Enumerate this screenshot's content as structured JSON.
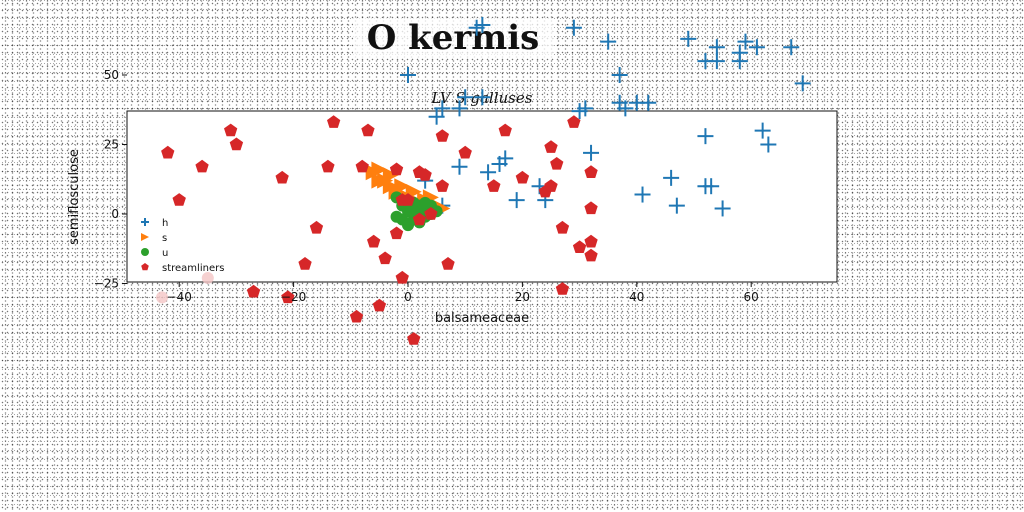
{
  "page": {
    "suptitle": "O kermis"
  },
  "colors": {
    "h": "#1f77b4",
    "s": "#ff7f0e",
    "u": "#2ca02c",
    "streamliners": "#d62728"
  },
  "chart_data": {
    "type": "scatter",
    "title": "LV S galluses",
    "xlabel": "balsameaceae",
    "ylabel": "semiflosculose",
    "xlim": [
      -48,
      74
    ],
    "ylim": [
      -48,
      74
    ],
    "xticks": [
      -40,
      -20,
      0,
      20,
      40,
      60
    ],
    "yticks": [
      -25,
      0,
      25,
      50
    ],
    "ytick_labels": [
      "−25",
      "0",
      "25",
      "50"
    ],
    "xtick_labels": [
      "−40",
      "−20",
      "0",
      "20",
      "40",
      "60"
    ],
    "grid": false,
    "legend": "lower-left",
    "series": [
      {
        "name": "h",
        "marker": "plus",
        "points": [
          [
            0,
            50
          ],
          [
            5,
            35
          ],
          [
            6,
            38
          ],
          [
            9,
            38
          ],
          [
            10,
            42
          ],
          [
            12,
            67
          ],
          [
            13,
            68
          ],
          [
            13,
            42
          ],
          [
            14,
            15
          ],
          [
            9,
            17
          ],
          [
            16,
            18
          ],
          [
            17,
            20
          ],
          [
            19,
            5
          ],
          [
            23,
            10
          ],
          [
            24,
            5
          ],
          [
            29,
            67
          ],
          [
            30,
            37
          ],
          [
            31,
            38
          ],
          [
            32,
            22
          ],
          [
            35,
            62
          ],
          [
            37,
            50
          ],
          [
            37,
            40
          ],
          [
            38,
            38
          ],
          [
            40,
            40
          ],
          [
            42,
            40
          ],
          [
            41,
            7
          ],
          [
            46,
            13
          ],
          [
            47,
            3
          ],
          [
            49,
            63
          ],
          [
            52,
            55
          ],
          [
            52,
            28
          ],
          [
            52,
            10
          ],
          [
            53,
            10
          ],
          [
            54,
            55
          ],
          [
            54,
            60
          ],
          [
            55,
            2
          ],
          [
            58,
            58
          ],
          [
            58,
            55
          ],
          [
            59,
            62
          ],
          [
            61,
            60
          ],
          [
            62,
            30
          ],
          [
            63,
            25
          ],
          [
            67,
            60
          ],
          [
            69,
            47
          ],
          [
            3,
            12
          ],
          [
            6,
            3
          ],
          [
            4,
            2
          ]
        ]
      },
      {
        "name": "s",
        "marker": "triangle",
        "points": [
          [
            -6,
            15
          ],
          [
            -5,
            12
          ],
          [
            -4,
            12
          ],
          [
            -3,
            10
          ],
          [
            -2,
            8
          ],
          [
            -1,
            10
          ],
          [
            0,
            6
          ],
          [
            1,
            8
          ],
          [
            2,
            4
          ],
          [
            3,
            5
          ],
          [
            4,
            6
          ],
          [
            5,
            3
          ],
          [
            6,
            2
          ],
          [
            4,
            1
          ],
          [
            2,
            2
          ],
          [
            0,
            4
          ],
          [
            -3,
            14
          ],
          [
            -5,
            16
          ]
        ]
      },
      {
        "name": "u",
        "marker": "circle",
        "points": [
          [
            -2,
            6
          ],
          [
            -1,
            3
          ],
          [
            0,
            1
          ],
          [
            1,
            -2
          ],
          [
            2,
            0
          ],
          [
            2,
            3
          ],
          [
            3,
            -1
          ],
          [
            3,
            2
          ],
          [
            4,
            0
          ],
          [
            5,
            1
          ],
          [
            1,
            4
          ],
          [
            -1,
            -2
          ],
          [
            0,
            -4
          ],
          [
            2,
            -3
          ],
          [
            3,
            4
          ],
          [
            4,
            3
          ],
          [
            -2,
            -1
          ],
          [
            1,
            1
          ]
        ]
      },
      {
        "name": "streamliners",
        "marker": "pentagon",
        "points": [
          [
            -42,
            22
          ],
          [
            -40,
            5
          ],
          [
            -36,
            17
          ],
          [
            -31,
            30
          ],
          [
            -30,
            25
          ],
          [
            -27,
            -28
          ],
          [
            -22,
            13
          ],
          [
            -21,
            -30
          ],
          [
            -18,
            -18
          ],
          [
            -16,
            -5
          ],
          [
            -14,
            17
          ],
          [
            -13,
            33
          ],
          [
            -9,
            -37
          ],
          [
            -8,
            17
          ],
          [
            -7,
            30
          ],
          [
            -6,
            -10
          ],
          [
            -5,
            -33
          ],
          [
            -4,
            -16
          ],
          [
            -2,
            16
          ],
          [
            -1,
            -23
          ],
          [
            -1,
            5
          ],
          [
            0,
            5
          ],
          [
            1,
            -45
          ],
          [
            2,
            15
          ],
          [
            3,
            14
          ],
          [
            4,
            0
          ],
          [
            6,
            28
          ],
          [
            6,
            10
          ],
          [
            7,
            -18
          ],
          [
            10,
            22
          ],
          [
            15,
            10
          ],
          [
            17,
            30
          ],
          [
            20,
            13
          ],
          [
            24,
            8
          ],
          [
            25,
            24
          ],
          [
            25,
            10
          ],
          [
            26,
            18
          ],
          [
            27,
            -5
          ],
          [
            27,
            -27
          ],
          [
            29,
            33
          ],
          [
            30,
            -12
          ],
          [
            32,
            -10
          ],
          [
            32,
            -15
          ],
          [
            32,
            2
          ],
          [
            32,
            15
          ],
          [
            2,
            -2
          ],
          [
            -2,
            -7
          ]
        ]
      }
    ]
  }
}
